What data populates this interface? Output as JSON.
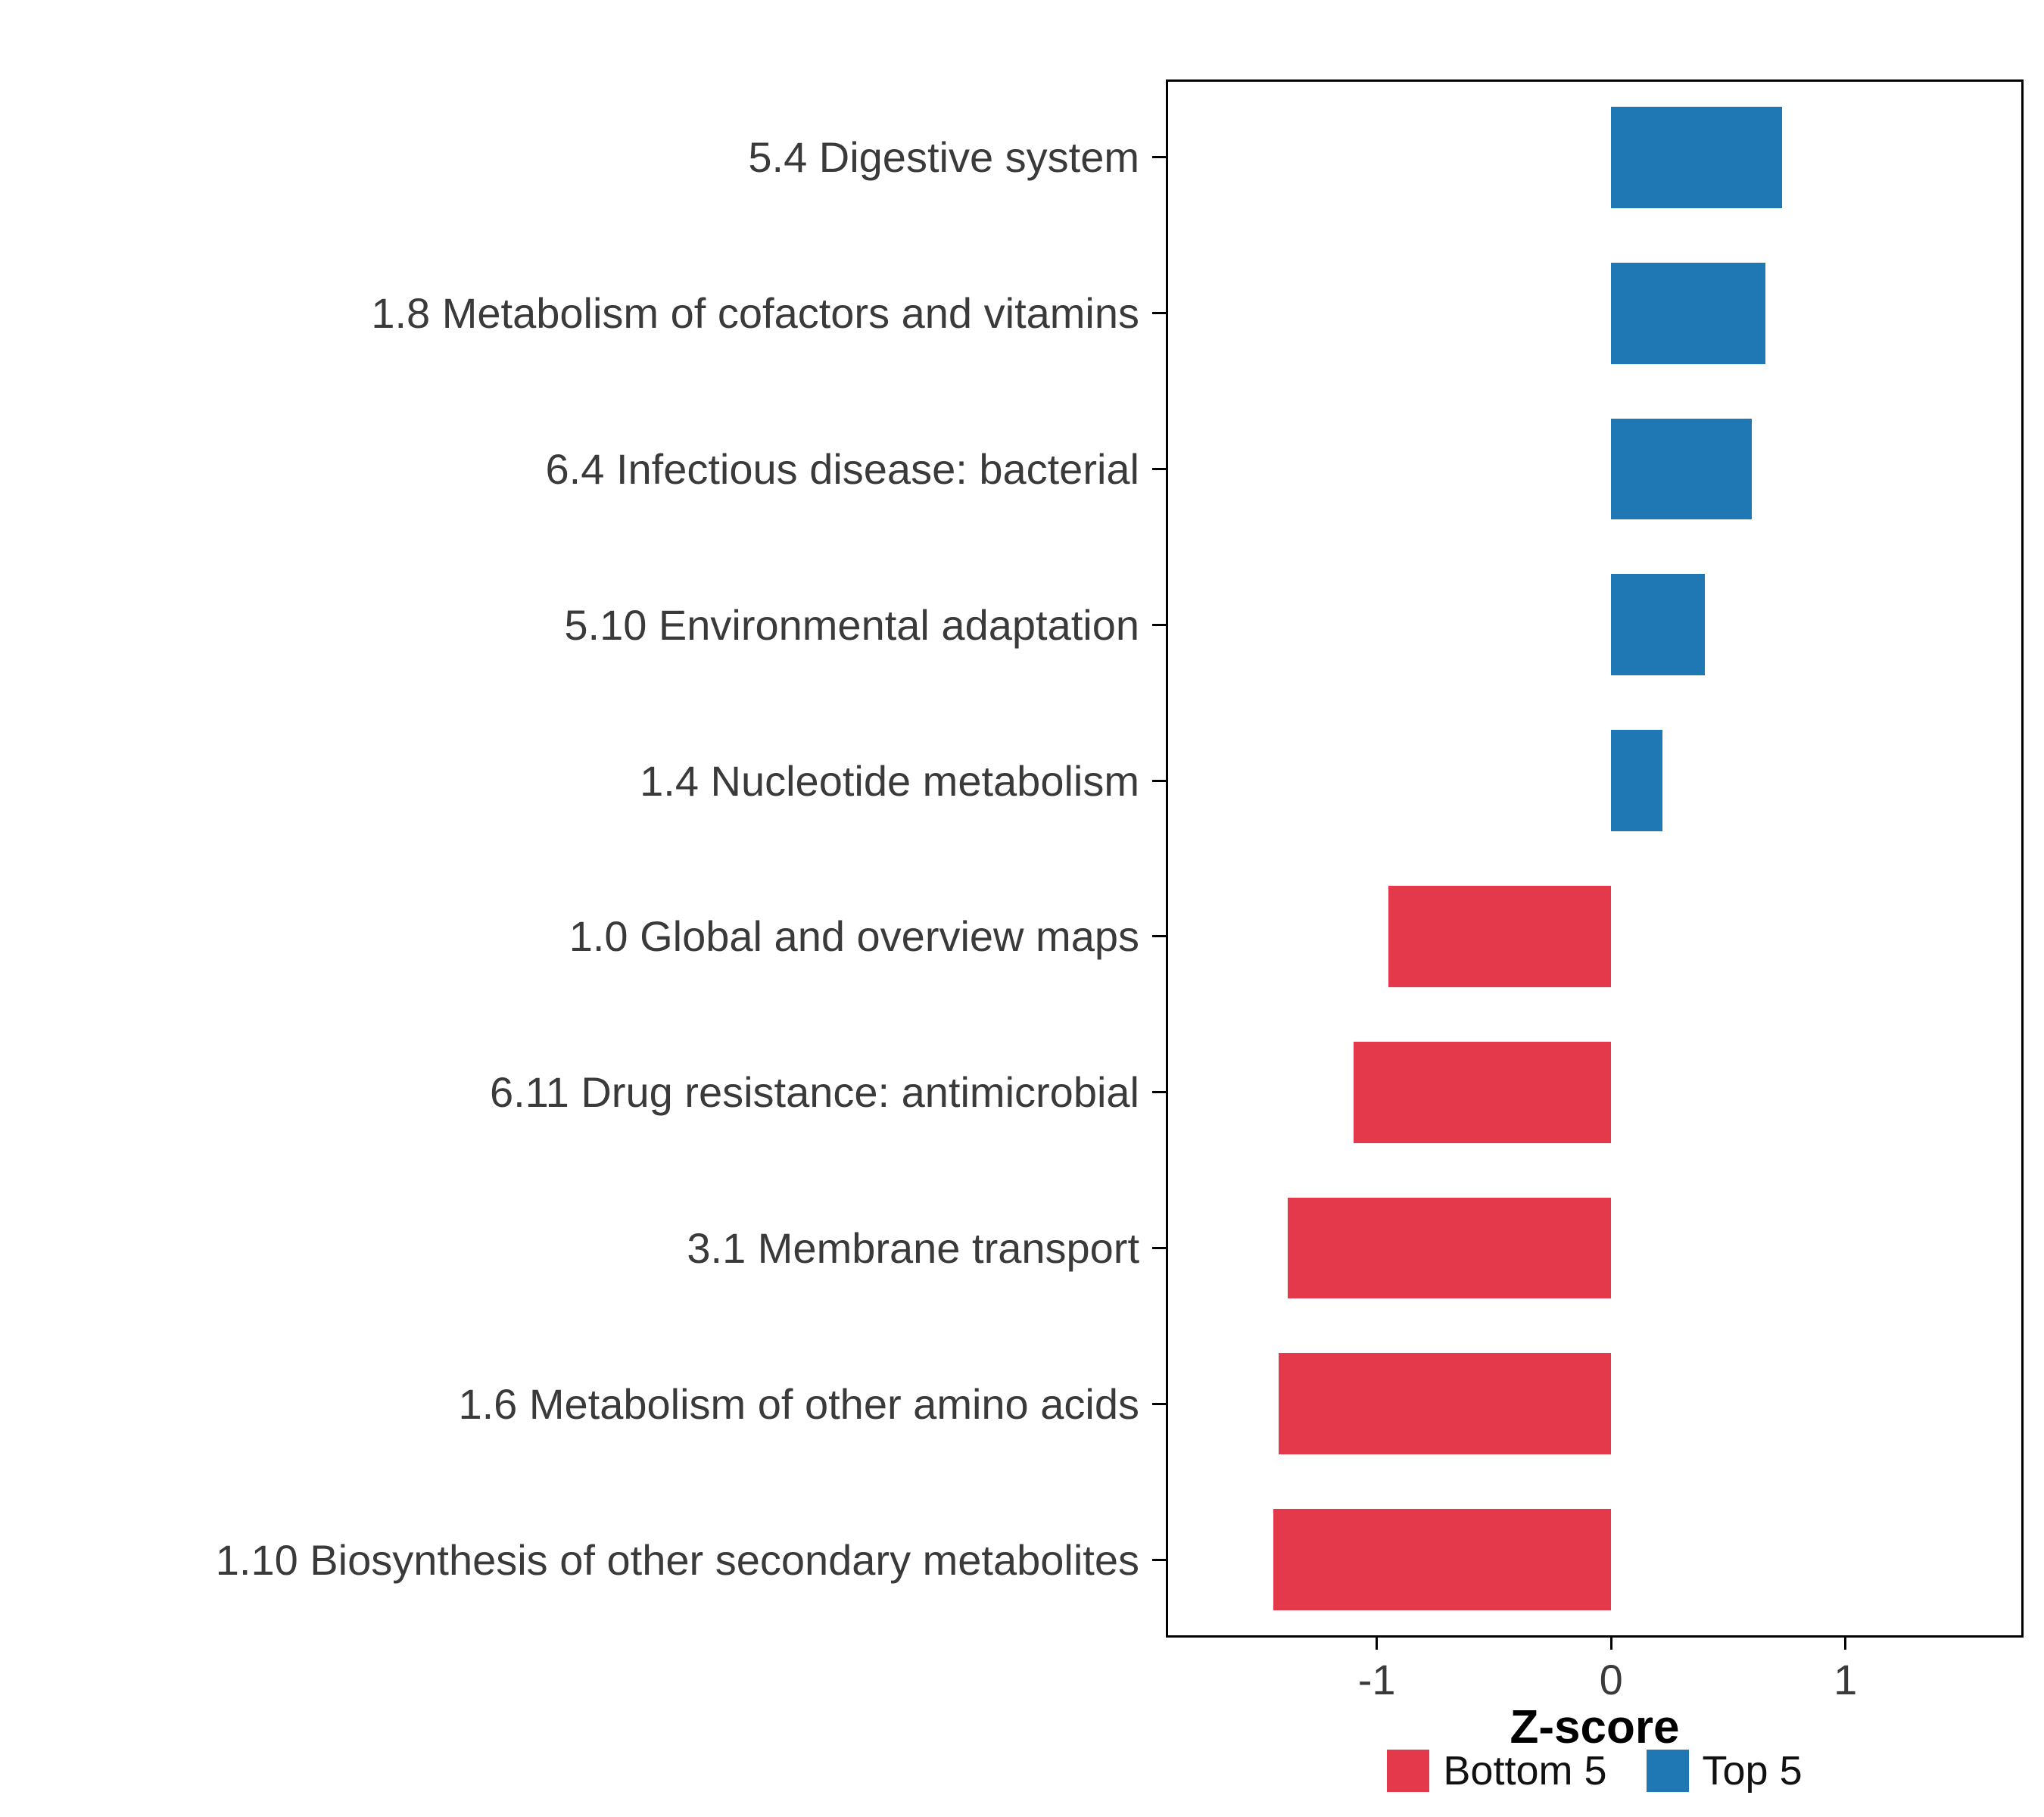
{
  "chart_data": {
    "type": "bar",
    "orientation": "horizontal",
    "title": "",
    "xlabel": "Z-score",
    "ylabel": "",
    "grid": false,
    "legend_position": "bottom",
    "xlim": [
      -1.9,
      1.76
    ],
    "x_ticks": [
      -1,
      0,
      1
    ],
    "x_tick_labels": [
      "-1",
      "0",
      "1"
    ],
    "categories": [
      "5.4 Digestive system",
      "1.8 Metabolism of cofactors and vitamins",
      "6.4 Infectious disease: bacterial",
      "5.10 Environmental adaptation",
      "1.4 Nucleotide metabolism",
      "1.0 Global and overview maps",
      "6.11 Drug resistance: antimicrobial",
      "3.1 Membrane transport",
      "1.6 Metabolism of other amino acids",
      "1.10 Biosynthesis of other secondary metabolites"
    ],
    "values": [
      0.73,
      0.66,
      0.6,
      0.4,
      0.22,
      -0.95,
      -1.1,
      -1.38,
      -1.42,
      -1.44
    ],
    "groups": [
      "Top 5",
      "Top 5",
      "Top 5",
      "Top 5",
      "Top 5",
      "Bottom 5",
      "Bottom 5",
      "Bottom 5",
      "Bottom 5",
      "Bottom 5"
    ],
    "series_colors": {
      "Bottom 5": "#E3394B",
      "Top 5": "#1F78B4"
    },
    "legend": [
      {
        "label": "Bottom 5",
        "color": "#E3394B"
      },
      {
        "label": "Top 5",
        "color": "#1F78B4"
      }
    ]
  }
}
